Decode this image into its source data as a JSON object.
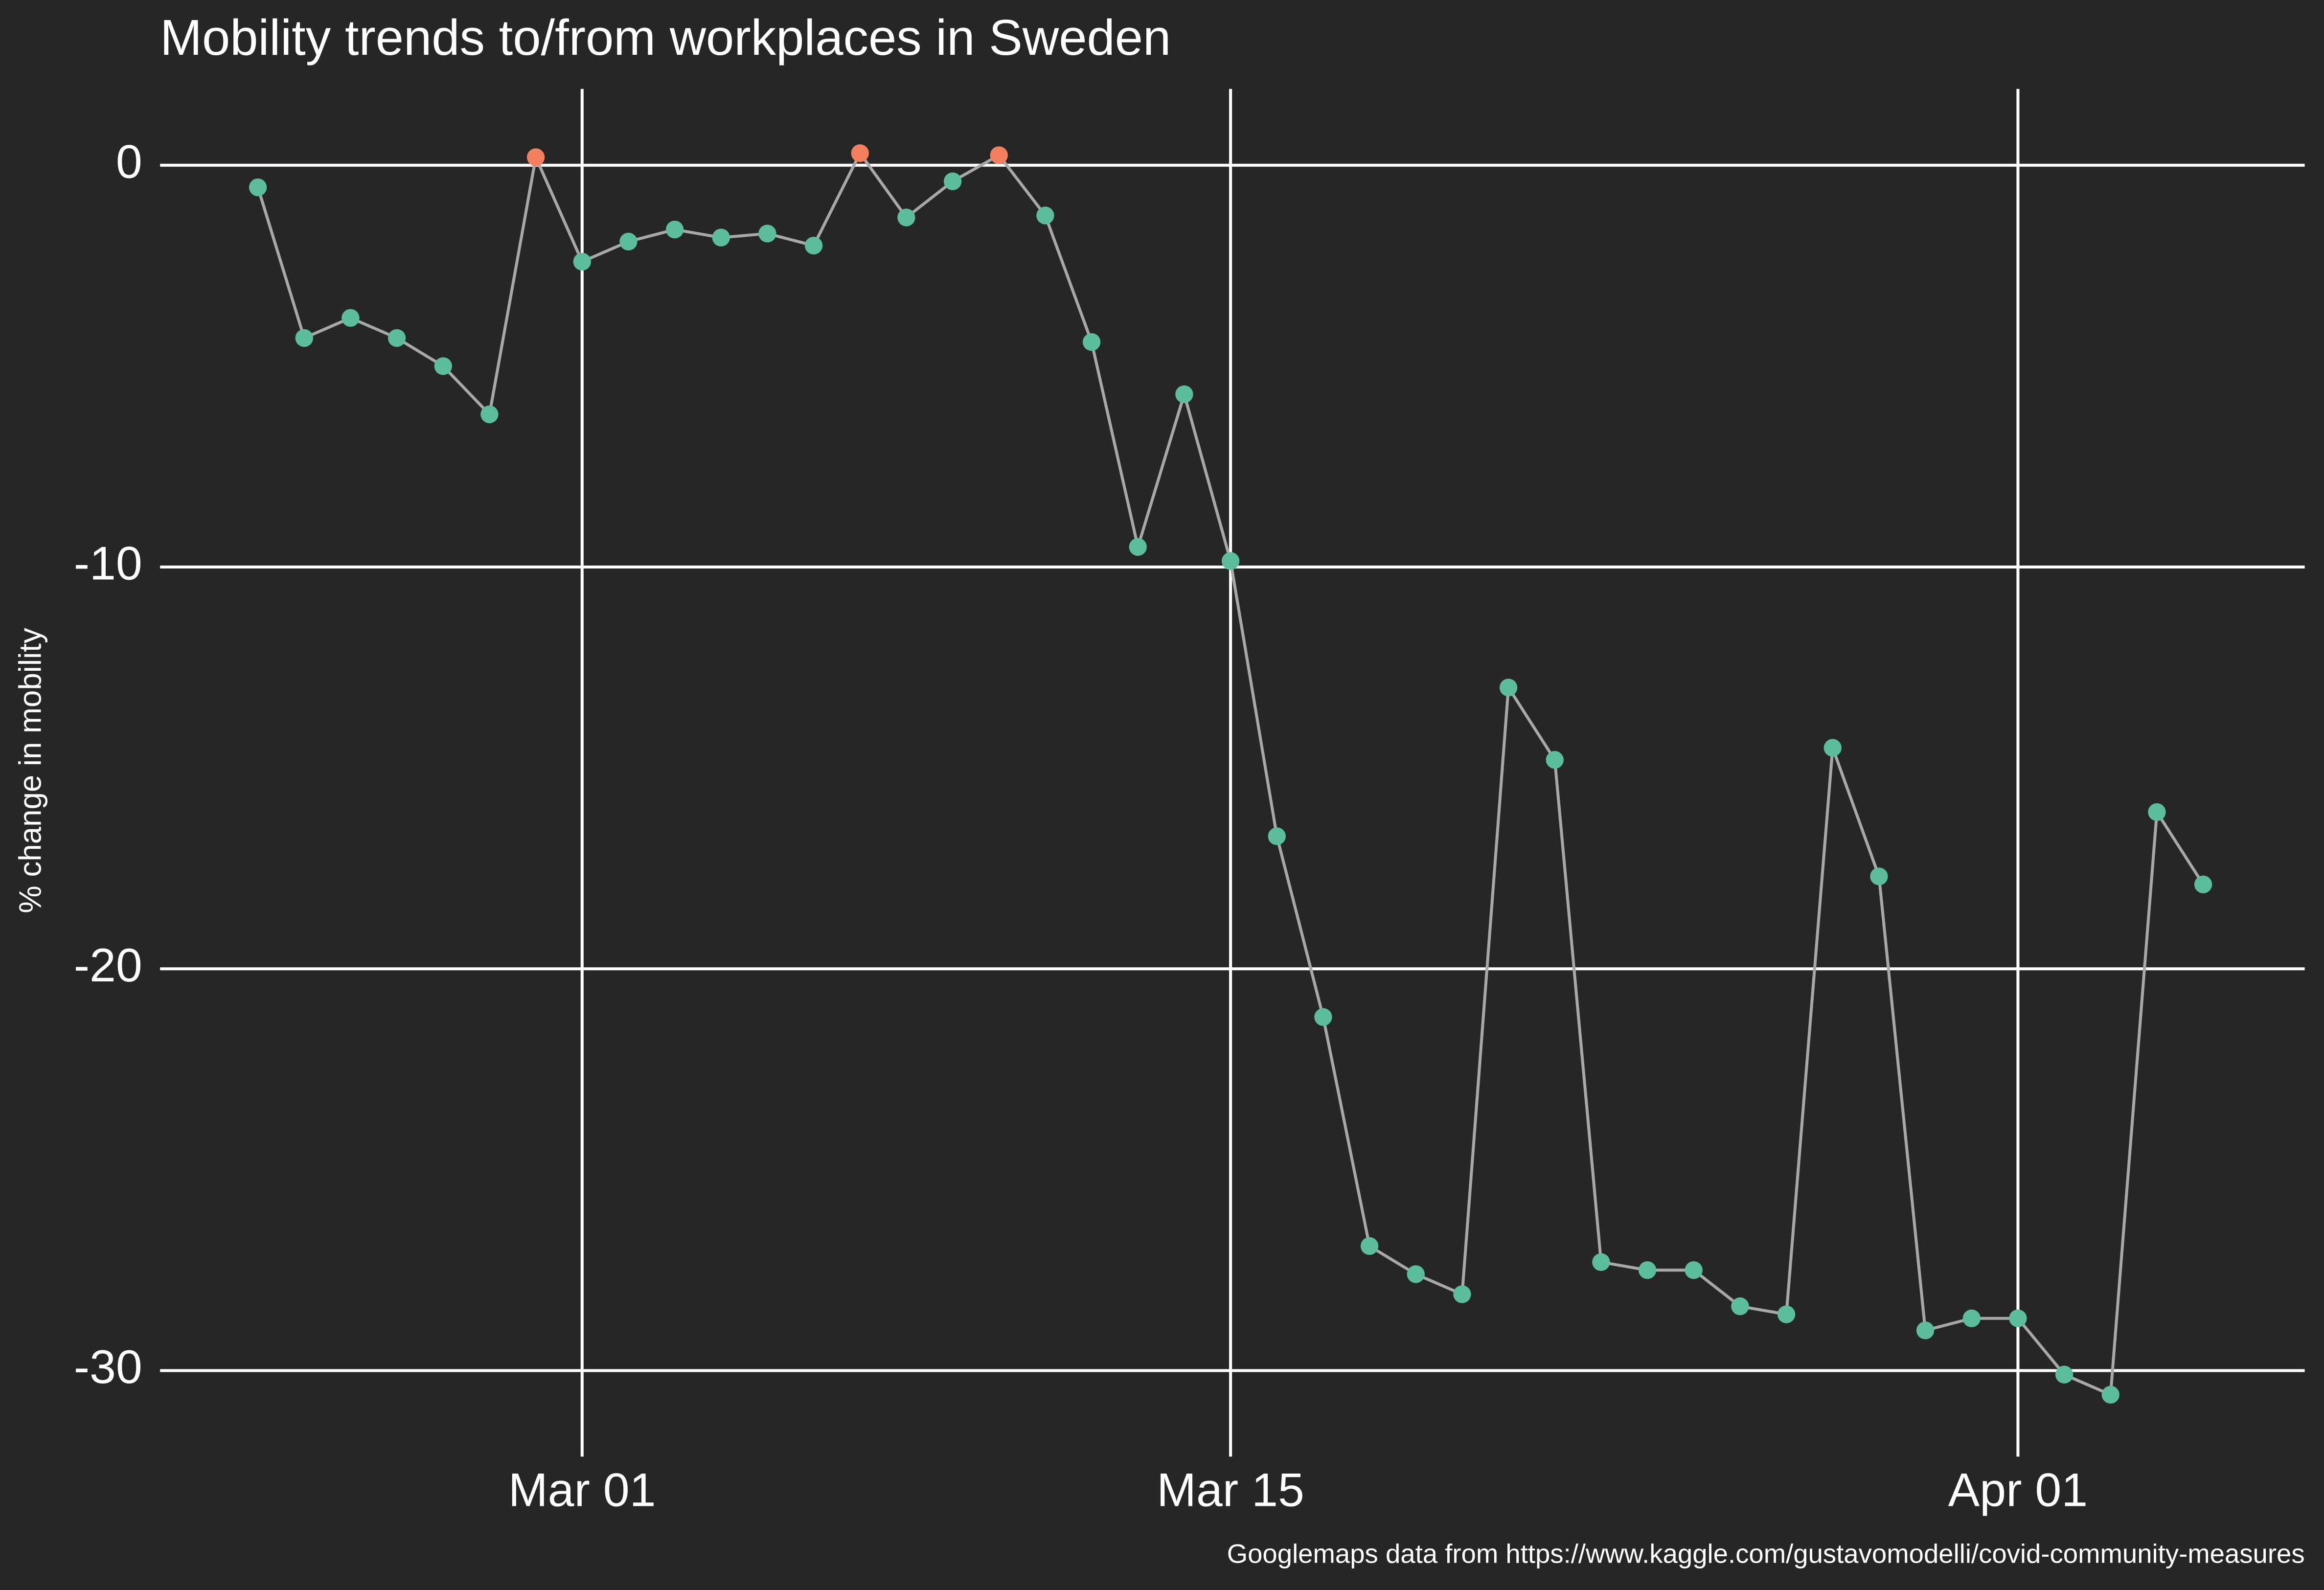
{
  "chart_data": {
    "type": "line",
    "title": "Mobility trends to/from workplaces in Sweden",
    "ylabel": "% change in mobility",
    "caption": "Googlemaps data from https://www.kaggle.com/gustavomodelli/covid-community-measures",
    "x": [
      "Feb 23",
      "Feb 24",
      "Feb 25",
      "Feb 26",
      "Feb 27",
      "Feb 28",
      "Feb 29",
      "Mar 01",
      "Mar 02",
      "Mar 03",
      "Mar 04",
      "Mar 05",
      "Mar 06",
      "Mar 07",
      "Mar 08",
      "Mar 09",
      "Mar 10",
      "Mar 11",
      "Mar 12",
      "Mar 13",
      "Mar 14",
      "Mar 15",
      "Mar 16",
      "Mar 17",
      "Mar 18",
      "Mar 19",
      "Mar 20",
      "Mar 21",
      "Mar 22",
      "Mar 23",
      "Mar 24",
      "Mar 25",
      "Mar 26",
      "Mar 27",
      "Mar 28",
      "Mar 29",
      "Mar 30",
      "Mar 31",
      "Apr 01",
      "Apr 02",
      "Apr 03",
      "Apr 04",
      "Apr 05"
    ],
    "series": [
      {
        "values": [
          -0.55,
          -4.3,
          -3.8,
          -4.3,
          -5.0,
          -6.2,
          0.2,
          -2.4,
          -1.9,
          -1.6,
          -1.8,
          -1.7,
          -2.0,
          0.3,
          -1.3,
          -0.4,
          0.25,
          -1.25,
          -4.4,
          -9.5,
          -5.7,
          -9.85,
          -16.7,
          -21.2,
          -26.9,
          -27.6,
          -28.1,
          -13.0,
          -14.8,
          -27.3,
          -27.5,
          -27.5,
          -28.4,
          -28.6,
          -14.5,
          -17.7,
          -29.0,
          -28.7,
          -28.7,
          -30.1,
          -30.6,
          -16.1,
          -17.9
        ],
        "color": "#5bbd99",
        "positive_color": "#f47f5e",
        "line_color": "#a8a8a8"
      }
    ],
    "xticks": [
      "Mar 01",
      "Mar 15",
      "Apr 01"
    ],
    "ylim": [
      -32.4,
      1.9
    ],
    "yticks": [
      0,
      -10,
      -20,
      -30
    ],
    "grid": true,
    "background": "#262626",
    "grid_color": "#ffffff"
  }
}
